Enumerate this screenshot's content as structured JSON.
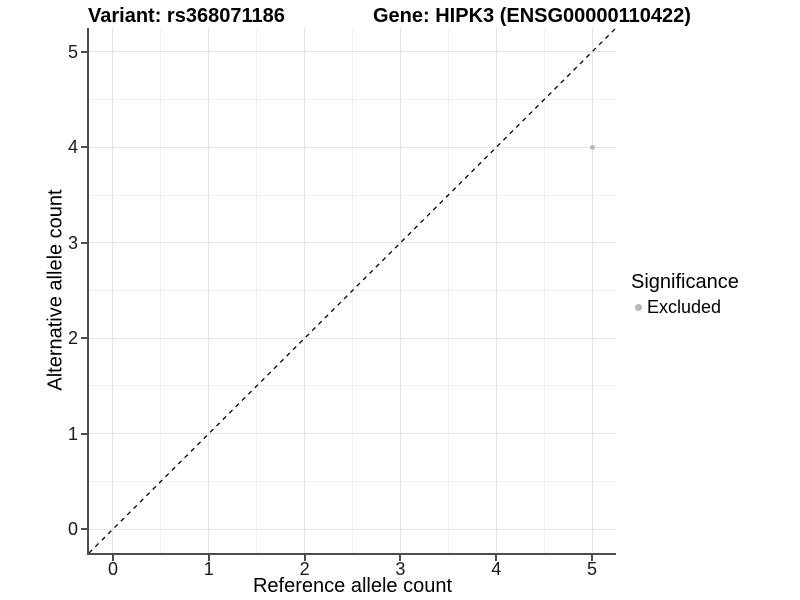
{
  "chart_data": {
    "type": "scatter",
    "titles": {
      "left": "Variant: rs368071186",
      "right": "Gene: HIPK3 (ENSG00000110422)"
    },
    "xlabel": "Reference allele count",
    "ylabel": "Alternative allele count",
    "xlim": [
      -0.25,
      5.25
    ],
    "ylim": [
      -0.25,
      5.25
    ],
    "x_ticks": [
      0,
      1,
      2,
      3,
      4,
      5
    ],
    "y_ticks": [
      0,
      1,
      2,
      3,
      4,
      5
    ],
    "grid": {
      "major": true,
      "minor": true
    },
    "points": [
      {
        "x": 5,
        "y": 4,
        "significance": "Excluded"
      }
    ],
    "reference_line": {
      "type": "identity",
      "slope": 1,
      "intercept": 0,
      "style": "dashed"
    },
    "legend": {
      "title": "Significance",
      "position": "right",
      "items": [
        {
          "label": "Excluded",
          "color": "#b8b8b8"
        }
      ]
    }
  },
  "colors": {
    "background": "#ffffff",
    "grid_major": "#e4e4e4",
    "grid_minor": "#f0f0f0",
    "axis": "#4d4d4d",
    "tick_label": "#1a1a1a",
    "title": "#000000",
    "point": "#b8b8b8",
    "reference_line": "#000000"
  }
}
